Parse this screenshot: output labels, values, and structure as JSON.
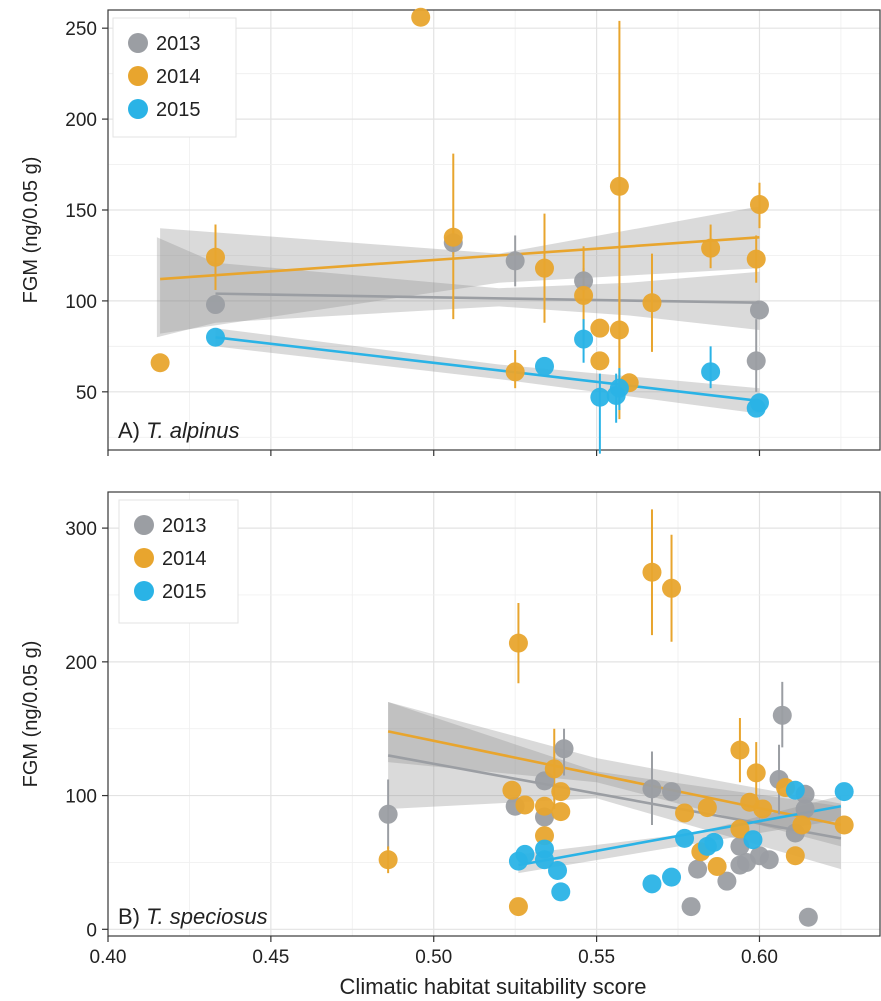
{
  "figure": {
    "xlabel": "Climatic habitat suitability score",
    "x_ticks": [
      "0.40",
      "0.45",
      "0.50",
      "0.55",
      "0.60"
    ]
  },
  "chart_data": [
    {
      "type": "scatter",
      "panel_label_prefix": "A) ",
      "panel_label_species": "T. alpinus",
      "ylabel": "FGM (ng/0.05 g)",
      "xlim": [
        0.4,
        0.637
      ],
      "ylim": [
        18,
        260
      ],
      "y_ticks": [
        50,
        100,
        150,
        200,
        250
      ],
      "legend_position": "top-left",
      "series": [
        {
          "name": "2013",
          "color": "#9b9ea3",
          "points": [
            {
              "x": 0.433,
              "y": 98
            },
            {
              "x": 0.506,
              "y": 132,
              "lo": 126,
              "hi": 140
            },
            {
              "x": 0.525,
              "y": 122,
              "lo": 108,
              "hi": 136
            },
            {
              "x": 0.546,
              "y": 111,
              "lo": 104,
              "hi": 118
            },
            {
              "x": 0.599,
              "y": 67,
              "lo": 50,
              "hi": 90
            },
            {
              "x": 0.6,
              "y": 95
            }
          ],
          "fit": {
            "x": [
              0.433,
              0.6
            ],
            "y": [
              104,
              99
            ]
          },
          "band": {
            "x": [
              0.415,
              0.433,
              0.52,
              0.56,
              0.6
            ],
            "lo": [
              80,
              88,
              97,
              92,
              84
            ],
            "hi": [
              135,
              121,
              107,
              110,
              116
            ]
          }
        },
        {
          "name": "2014",
          "color": "#e8a52e",
          "points": [
            {
              "x": 0.416,
              "y": 66
            },
            {
              "x": 0.433,
              "y": 124,
              "lo": 106,
              "hi": 142
            },
            {
              "x": 0.496,
              "y": 256
            },
            {
              "x": 0.506,
              "y": 135,
              "lo": 90,
              "hi": 181
            },
            {
              "x": 0.525,
              "y": 61,
              "lo": 52,
              "hi": 73
            },
            {
              "x": 0.534,
              "y": 118,
              "lo": 88,
              "hi": 148
            },
            {
              "x": 0.546,
              "y": 103,
              "lo": 78,
              "hi": 130
            },
            {
              "x": 0.551,
              "y": 85
            },
            {
              "x": 0.551,
              "y": 67
            },
            {
              "x": 0.557,
              "y": 84,
              "lo": 35,
              "hi": 108
            },
            {
              "x": 0.557,
              "y": 163,
              "lo": 42,
              "hi": 254
            },
            {
              "x": 0.56,
              "y": 55
            },
            {
              "x": 0.567,
              "y": 99,
              "lo": 72,
              "hi": 126
            },
            {
              "x": 0.585,
              "y": 129,
              "lo": 118,
              "hi": 142
            },
            {
              "x": 0.599,
              "y": 123,
              "lo": 110,
              "hi": 136
            },
            {
              "x": 0.6,
              "y": 153,
              "lo": 140,
              "hi": 165
            }
          ],
          "fit": {
            "x": [
              0.416,
              0.6
            ],
            "y": [
              112,
              135
            ]
          },
          "band": {
            "x": [
              0.416,
              0.52,
              0.6
            ],
            "lo": [
              82,
              110,
              118
            ],
            "hi": [
              140,
              126,
              152
            ]
          }
        },
        {
          "name": "2015",
          "color": "#2ab3e6",
          "points": [
            {
              "x": 0.433,
              "y": 80
            },
            {
              "x": 0.534,
              "y": 64
            },
            {
              "x": 0.546,
              "y": 79,
              "lo": 66,
              "hi": 90
            },
            {
              "x": 0.551,
              "y": 47,
              "lo": 16,
              "hi": 60
            },
            {
              "x": 0.556,
              "y": 48,
              "lo": 33,
              "hi": 60
            },
            {
              "x": 0.557,
              "y": 52,
              "lo": 40,
              "hi": 63
            },
            {
              "x": 0.585,
              "y": 61,
              "lo": 52,
              "hi": 75
            },
            {
              "x": 0.599,
              "y": 41
            },
            {
              "x": 0.6,
              "y": 44
            }
          ],
          "fit": {
            "x": [
              0.433,
              0.6
            ],
            "y": [
              80,
              45
            ]
          },
          "band": {
            "x": [
              0.433,
              0.52,
              0.6
            ],
            "lo": [
              75,
              57,
              38
            ],
            "hi": [
              85,
              65,
              52
            ]
          }
        }
      ]
    },
    {
      "type": "scatter",
      "panel_label_prefix": "B) ",
      "panel_label_species": "T. speciosus",
      "ylabel": "FGM (ng/0.05 g)",
      "xlim": [
        0.4,
        0.637
      ],
      "ylim": [
        -5,
        327
      ],
      "y_ticks": [
        0,
        100,
        200,
        300
      ],
      "legend_position": "top-left",
      "series": [
        {
          "name": "2013",
          "color": "#9b9ea3",
          "points": [
            {
              "x": 0.486,
              "y": 86,
              "lo": 60,
              "hi": 112
            },
            {
              "x": 0.525,
              "y": 92
            },
            {
              "x": 0.534,
              "y": 84
            },
            {
              "x": 0.534,
              "y": 111
            },
            {
              "x": 0.54,
              "y": 135,
              "lo": 115,
              "hi": 150
            },
            {
              "x": 0.567,
              "y": 105,
              "lo": 78,
              "hi": 133
            },
            {
              "x": 0.573,
              "y": 103
            },
            {
              "x": 0.579,
              "y": 17
            },
            {
              "x": 0.581,
              "y": 45
            },
            {
              "x": 0.59,
              "y": 36
            },
            {
              "x": 0.594,
              "y": 48
            },
            {
              "x": 0.594,
              "y": 62
            },
            {
              "x": 0.596,
              "y": 50
            },
            {
              "x": 0.6,
              "y": 55
            },
            {
              "x": 0.603,
              "y": 52
            },
            {
              "x": 0.606,
              "y": 112,
              "lo": 86,
              "hi": 138
            },
            {
              "x": 0.607,
              "y": 160,
              "lo": 136,
              "hi": 185
            },
            {
              "x": 0.611,
              "y": 72
            },
            {
              "x": 0.614,
              "y": 101
            },
            {
              "x": 0.614,
              "y": 90
            },
            {
              "x": 0.615,
              "y": 9
            }
          ],
          "fit": {
            "x": [
              0.486,
              0.625
            ],
            "y": [
              130,
              68
            ]
          },
          "band": {
            "x": [
              0.486,
              0.55,
              0.625
            ],
            "lo": [
              90,
              98,
              45
            ],
            "hi": [
              170,
              118,
              92
            ]
          }
        },
        {
          "name": "2014",
          "color": "#e8a52e",
          "points": [
            {
              "x": 0.486,
              "y": 52,
              "lo": 42,
              "hi": 62
            },
            {
              "x": 0.524,
              "y": 104
            },
            {
              "x": 0.526,
              "y": 214,
              "lo": 184,
              "hi": 244
            },
            {
              "x": 0.526,
              "y": 17
            },
            {
              "x": 0.528,
              "y": 93
            },
            {
              "x": 0.534,
              "y": 70
            },
            {
              "x": 0.534,
              "y": 92
            },
            {
              "x": 0.537,
              "y": 120,
              "lo": 90,
              "hi": 150
            },
            {
              "x": 0.539,
              "y": 88
            },
            {
              "x": 0.539,
              "y": 103
            },
            {
              "x": 0.567,
              "y": 267,
              "lo": 220,
              "hi": 314
            },
            {
              "x": 0.573,
              "y": 255,
              "lo": 215,
              "hi": 295
            },
            {
              "x": 0.577,
              "y": 87
            },
            {
              "x": 0.582,
              "y": 58
            },
            {
              "x": 0.584,
              "y": 91
            },
            {
              "x": 0.587,
              "y": 47
            },
            {
              "x": 0.594,
              "y": 134,
              "lo": 110,
              "hi": 158
            },
            {
              "x": 0.594,
              "y": 75
            },
            {
              "x": 0.597,
              "y": 95
            },
            {
              "x": 0.599,
              "y": 117,
              "lo": 95,
              "hi": 140
            },
            {
              "x": 0.601,
              "y": 90
            },
            {
              "x": 0.608,
              "y": 106
            },
            {
              "x": 0.611,
              "y": 55
            },
            {
              "x": 0.613,
              "y": 78
            },
            {
              "x": 0.626,
              "y": 78
            }
          ],
          "fit": {
            "x": [
              0.486,
              0.625
            ],
            "y": [
              148,
              78
            ]
          },
          "band": {
            "x": [
              0.486,
              0.55,
              0.625
            ],
            "lo": [
              125,
              110,
              62
            ],
            "hi": [
              170,
              128,
              94
            ]
          }
        },
        {
          "name": "2015",
          "color": "#2ab3e6",
          "points": [
            {
              "x": 0.526,
              "y": 51
            },
            {
              "x": 0.528,
              "y": 56
            },
            {
              "x": 0.534,
              "y": 60
            },
            {
              "x": 0.534,
              "y": 52
            },
            {
              "x": 0.538,
              "y": 44
            },
            {
              "x": 0.539,
              "y": 28
            },
            {
              "x": 0.567,
              "y": 34
            },
            {
              "x": 0.573,
              "y": 39
            },
            {
              "x": 0.577,
              "y": 68
            },
            {
              "x": 0.584,
              "y": 62
            },
            {
              "x": 0.586,
              "y": 65
            },
            {
              "x": 0.598,
              "y": 67
            },
            {
              "x": 0.611,
              "y": 104
            },
            {
              "x": 0.626,
              "y": 103
            }
          ],
          "fit": {
            "x": [
              0.526,
              0.625
            ],
            "y": [
              48,
              92
            ]
          },
          "band": {
            "x": [
              0.526,
              0.58,
              0.625
            ],
            "lo": [
              42,
              64,
              82
            ],
            "hi": [
              56,
              72,
              100
            ]
          }
        }
      ]
    }
  ]
}
